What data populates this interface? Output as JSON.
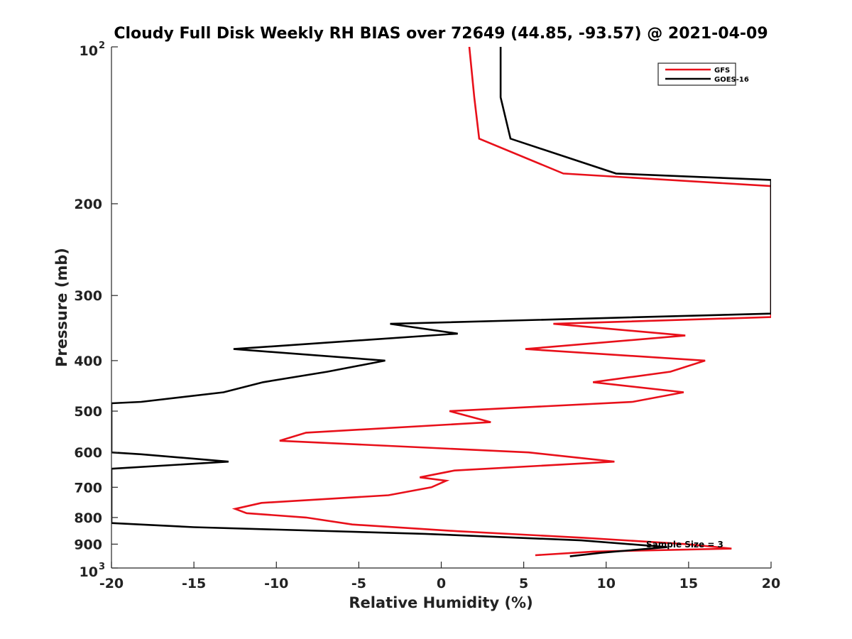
{
  "chart_data": {
    "type": "line",
    "title": "Cloudy Full Disk Weekly RH BIAS over 72649 (44.85, -93.57) @ 2021-04-09",
    "xlabel": "Relative Humidity (%)",
    "ylabel": "Pressure (mb)",
    "xlim": [
      -20,
      20
    ],
    "ylim": [
      100,
      1000
    ],
    "y_scale": "log",
    "y_reversed": true,
    "grid": false,
    "legend_position": "top-right",
    "x_ticks": [
      -20,
      -15,
      -10,
      -5,
      0,
      5,
      10,
      15,
      20
    ],
    "x_tick_labels": [
      "-20",
      "-15",
      "-10",
      "-5",
      "0",
      "5",
      "10",
      "15",
      "20"
    ],
    "y_ticks": [
      100,
      200,
      300,
      400,
      500,
      600,
      700,
      800,
      900,
      1000
    ],
    "y_tick_labels": [
      {
        "base": "10",
        "exp": "2"
      },
      {
        "base": "200",
        "exp": ""
      },
      {
        "base": "300",
        "exp": ""
      },
      {
        "base": "400",
        "exp": ""
      },
      {
        "base": "500",
        "exp": ""
      },
      {
        "base": "600",
        "exp": ""
      },
      {
        "base": "700",
        "exp": ""
      },
      {
        "base": "800",
        "exp": ""
      },
      {
        "base": "900",
        "exp": ""
      },
      {
        "base": "10",
        "exp": "3"
      }
    ],
    "annotation": "Sample Size = 3",
    "series": [
      {
        "name": "GFS",
        "color": "#e8101a",
        "points": [
          [
            1.7,
            100
          ],
          [
            2.0,
            125
          ],
          [
            2.3,
            150
          ],
          [
            7.4,
            175
          ],
          [
            20.0,
            185
          ],
          [
            20.0,
            330
          ],
          [
            6.8,
            340
          ],
          [
            14.8,
            358
          ],
          [
            5.1,
            380
          ],
          [
            16.0,
            400
          ],
          [
            13.9,
            420
          ],
          [
            9.2,
            440
          ],
          [
            14.7,
            460
          ],
          [
            11.6,
            480
          ],
          [
            0.5,
            500
          ],
          [
            3.0,
            525
          ],
          [
            -8.2,
            550
          ],
          [
            -9.8,
            570
          ],
          [
            5.3,
            600
          ],
          [
            10.5,
            625
          ],
          [
            0.8,
            650
          ],
          [
            -1.3,
            670
          ],
          [
            0.3,
            680
          ],
          [
            -0.6,
            700
          ],
          [
            -3.2,
            725
          ],
          [
            -10.9,
            750
          ],
          [
            -12.5,
            770
          ],
          [
            -11.8,
            785
          ],
          [
            -8.2,
            800
          ],
          [
            -5.4,
            825
          ],
          [
            1.0,
            850
          ],
          [
            8.6,
            875
          ],
          [
            14.9,
            900
          ],
          [
            17.6,
            918
          ],
          [
            9.2,
            930
          ],
          [
            5.7,
            945
          ]
        ]
      },
      {
        "name": "GOES-16",
        "color": "#000000",
        "points": [
          [
            3.6,
            100
          ],
          [
            3.6,
            125
          ],
          [
            4.2,
            150
          ],
          [
            10.6,
            175
          ],
          [
            20.0,
            180
          ],
          [
            20.0,
            325
          ],
          [
            -3.1,
            340
          ],
          [
            1.0,
            355
          ],
          [
            -12.6,
            380
          ],
          [
            -3.4,
            400
          ],
          [
            -6.9,
            420
          ],
          [
            -10.8,
            440
          ],
          [
            -13.2,
            460
          ],
          [
            -18.2,
            480
          ],
          [
            -20.0,
            483
          ],
          [
            -20.0,
            600
          ],
          [
            -18.2,
            605
          ],
          [
            -12.9,
            625
          ],
          [
            -20.0,
            645
          ],
          [
            -20.0,
            820
          ],
          [
            -15.0,
            835
          ],
          [
            -1.0,
            860
          ],
          [
            8.5,
            885
          ],
          [
            13.7,
            912
          ],
          [
            9.7,
            935
          ],
          [
            7.8,
            950
          ]
        ]
      }
    ]
  }
}
